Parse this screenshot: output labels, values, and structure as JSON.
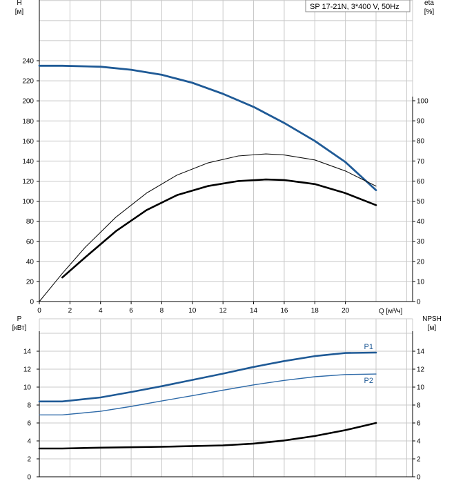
{
  "chart_data": [
    {
      "type": "line",
      "title": "SP 17-21N, 3*400 V, 50Hz",
      "xlabel": "Q [м³/ч]",
      "xlim": [
        0,
        22
      ],
      "xticks": [
        0,
        2,
        4,
        6,
        8,
        10,
        12,
        14,
        16,
        18,
        20
      ],
      "ylabel_left": [
        "H",
        "[м]"
      ],
      "ylim_left": [
        0,
        240
      ],
      "yticks_left": [
        0,
        20,
        40,
        60,
        80,
        100,
        120,
        140,
        160,
        180,
        200,
        220,
        240
      ],
      "ylabel_right": [
        "eta",
        "[%]"
      ],
      "ylim_right": [
        0,
        100
      ],
      "yticks_right": [
        0,
        10,
        20,
        30,
        40,
        50,
        60,
        70,
        80,
        90,
        100
      ],
      "grid": true,
      "colors": {
        "head": "#1f5a96",
        "eta_thin": "#000000",
        "eta_thick": "#000000"
      },
      "series": [
        {
          "axis": "left",
          "style": "head",
          "x": [
            0,
            1.5,
            4,
            6,
            8,
            10,
            12,
            14,
            16,
            18,
            20,
            22
          ],
          "values": [
            235,
            235,
            234,
            231,
            226,
            218,
            207,
            194,
            178,
            160,
            139,
            111
          ]
        },
        {
          "axis": "right",
          "style": "eta_thin",
          "x": [
            0,
            1.5,
            3,
            5,
            7,
            9,
            11,
            13,
            14.8,
            16,
            18,
            20,
            22
          ],
          "values": [
            0,
            14,
            27,
            42,
            54,
            63,
            69,
            72.5,
            73.5,
            73,
            70.5,
            65,
            57.5
          ]
        },
        {
          "axis": "right",
          "style": "eta_thick",
          "x": [
            1.5,
            3,
            5,
            7,
            9,
            11,
            13,
            14.8,
            16,
            18,
            20,
            22
          ],
          "values": [
            12,
            22,
            35,
            45.5,
            53,
            57.5,
            60,
            60.8,
            60.5,
            58.5,
            54,
            48
          ]
        }
      ]
    },
    {
      "type": "line",
      "title": "",
      "xlabel": "",
      "xlim": [
        0,
        22
      ],
      "ylabel_left": [
        "P",
        "[кВт]"
      ],
      "ylim_left": [
        0,
        16
      ],
      "yticks_left": [
        0,
        2,
        4,
        6,
        8,
        10,
        12,
        14
      ],
      "ylabel_right": [
        "NPSH",
        "[м]"
      ],
      "ylim_right": [
        0,
        16
      ],
      "yticks_right": [
        0,
        2,
        4,
        6,
        8,
        10,
        12,
        14
      ],
      "grid": true,
      "series": [
        {
          "name": "P1",
          "axis": "left",
          "style": "p1",
          "x": [
            0,
            1.5,
            4,
            6,
            8,
            10,
            12,
            14,
            16,
            18,
            20,
            22
          ],
          "values": [
            8.4,
            8.4,
            8.85,
            9.45,
            10.1,
            10.8,
            11.5,
            12.25,
            12.9,
            13.45,
            13.8,
            13.85
          ]
        },
        {
          "name": "P2",
          "axis": "left",
          "style": "p2",
          "x": [
            0,
            1.5,
            4,
            6,
            8,
            10,
            12,
            14,
            16,
            18,
            20,
            22
          ],
          "values": [
            6.9,
            6.9,
            7.3,
            7.85,
            8.45,
            9.05,
            9.65,
            10.25,
            10.75,
            11.15,
            11.4,
            11.45
          ]
        },
        {
          "axis": "right",
          "style": "npsh",
          "x": [
            0,
            1.5,
            4,
            8,
            12,
            14,
            16,
            18,
            20,
            22
          ],
          "values": [
            3.15,
            3.15,
            3.25,
            3.35,
            3.5,
            3.7,
            4.05,
            4.55,
            5.2,
            6.0
          ]
        }
      ]
    }
  ]
}
